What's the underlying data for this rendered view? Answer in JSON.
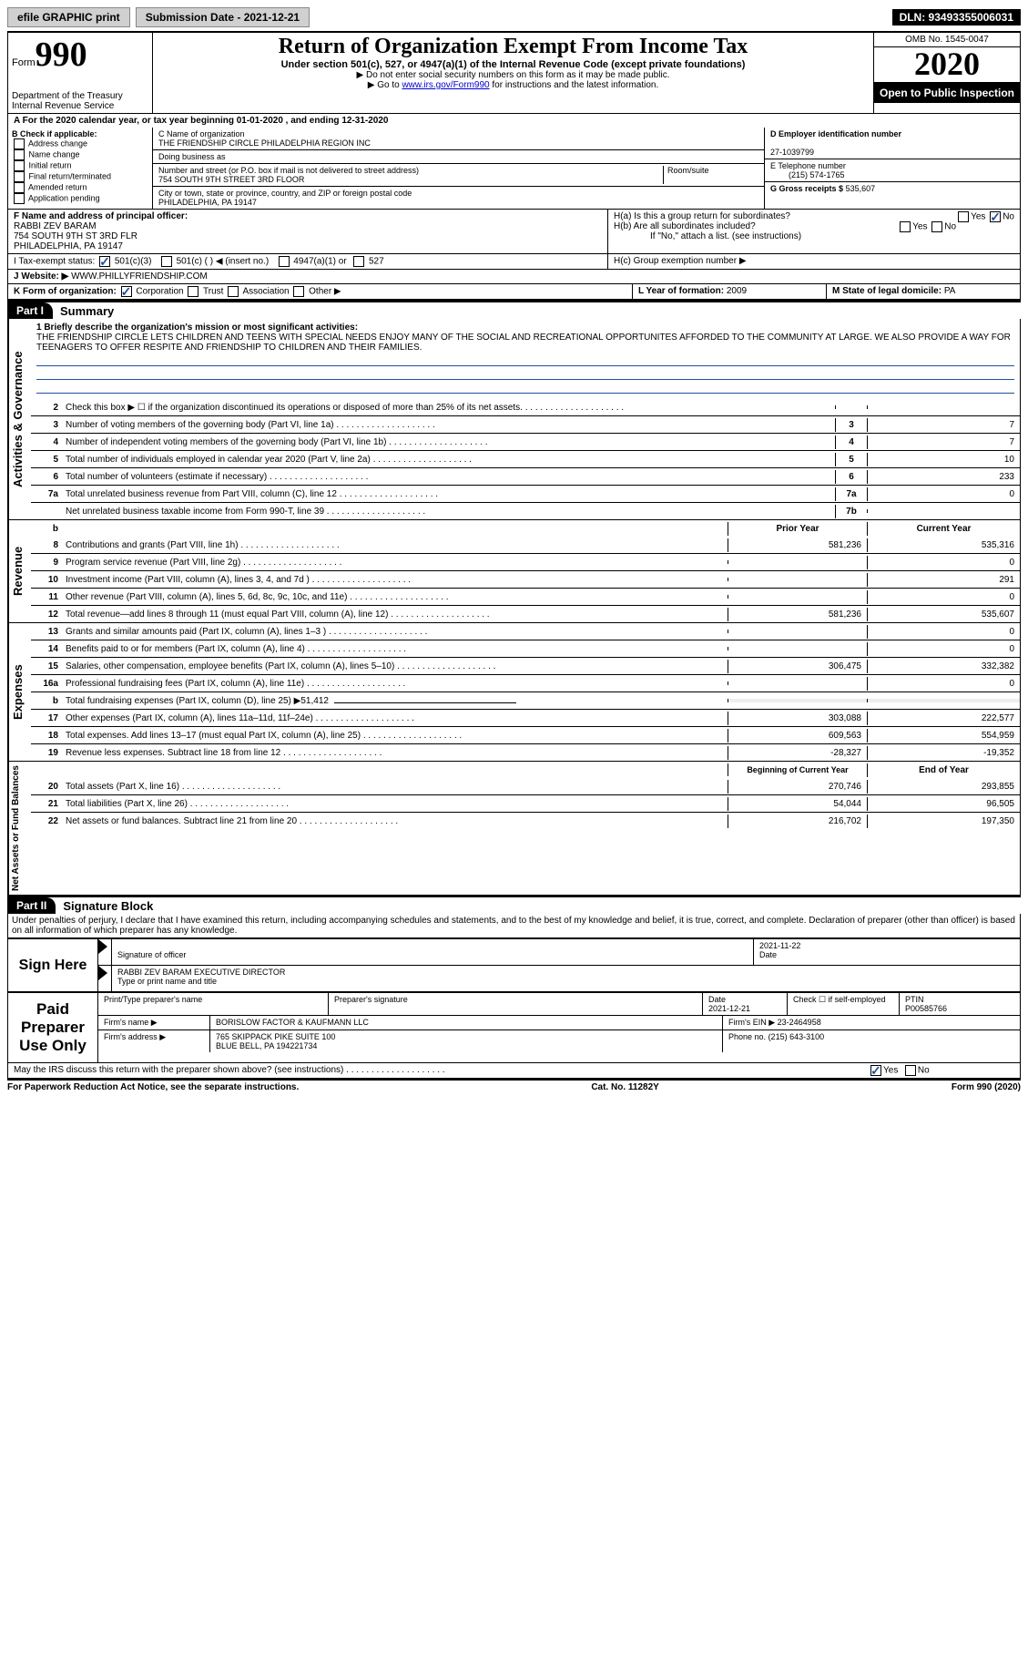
{
  "topbar": {
    "efile": "efile GRAPHIC print",
    "sub_label": "Submission Date - 2021-12-21",
    "dln": "DLN: 93493355006031"
  },
  "header": {
    "form_word": "Form",
    "form_num": "990",
    "dept": "Department of the Treasury",
    "irs": "Internal Revenue Service",
    "title": "Return of Organization Exempt From Income Tax",
    "sub": "Under section 501(c), 527, or 4947(a)(1) of the Internal Revenue Code (except private foundations)",
    "note1": "▶ Do not enter social security numbers on this form as it may be made public.",
    "note2_a": "▶ Go to ",
    "note2_link": "www.irs.gov/Form990",
    "note2_b": " for instructions and the latest information.",
    "omb": "OMB No. 1545-0047",
    "year": "2020",
    "open": "Open to Public Inspection"
  },
  "row_a": "A  For the 2020 calendar year, or tax year beginning 01-01-2020    , and ending 12-31-2020",
  "box_b": {
    "hdr": "B Check if applicable:",
    "items": [
      "Address change",
      "Name change",
      "Initial return",
      "Final return/terminated",
      "Amended return",
      "Application pending"
    ]
  },
  "box_c": {
    "label": "C Name of organization",
    "name": "THE FRIENDSHIP CIRCLE PHILADELPHIA REGION INC",
    "dba": "Doing business as",
    "addr_label": "Number and street (or P.O. box if mail is not delivered to street address)",
    "room": "Room/suite",
    "addr": "754 SOUTH 9TH STREET 3RD FLOOR",
    "city_label": "City or town, state or province, country, and ZIP or foreign postal code",
    "city": "PHILADELPHIA, PA  19147"
  },
  "box_d": {
    "label": "D Employer identification number",
    "val": "27-1039799"
  },
  "box_e": {
    "label": "E Telephone number",
    "val": "(215) 574-1765"
  },
  "box_g": {
    "label": "G Gross receipts $",
    "val": "535,607"
  },
  "box_f": {
    "label": "F  Name and address of principal officer:",
    "name": "RABBI ZEV BARAM",
    "addr1": "754 SOUTH 9TH ST 3RD FLR",
    "addr2": "PHILADELPHIA, PA  19147"
  },
  "box_h": {
    "a": "H(a)  Is this a group return for subordinates?",
    "b": "H(b)  Are all subordinates included?",
    "bnote": "If \"No,\" attach a list. (see instructions)",
    "c": "H(c)  Group exemption number ▶"
  },
  "row_i": {
    "label": "I   Tax-exempt status:",
    "o1": "501(c)(3)",
    "o2": "501(c) (  ) ◀ (insert no.)",
    "o3": "4947(a)(1) or",
    "o4": "527"
  },
  "row_j": {
    "label": "J  Website: ▶",
    "val": "WWW.PHILLYFRIENDSHIP.COM"
  },
  "row_k": {
    "label": "K Form of organization:",
    "opts": [
      "Corporation",
      "Trust",
      "Association",
      "Other ▶"
    ]
  },
  "row_l": {
    "label": "L Year of formation:",
    "val": "2009"
  },
  "row_m": {
    "label": "M State of legal domicile:",
    "val": "PA"
  },
  "part1": {
    "hdr": "Part I",
    "title": "Summary"
  },
  "mission": {
    "label": "1  Briefly describe the organization's mission or most significant activities:",
    "text": "THE FRIENDSHIP CIRCLE LETS CHILDREN AND TEENS WITH SPECIAL NEEDS ENJOY MANY OF THE SOCIAL AND RECREATIONAL OPPORTUNITES AFFORDED TO THE COMMUNITY AT LARGE. WE ALSO PROVIDE A WAY FOR TEENAGERS TO OFFER RESPITE AND FRIENDSHIP TO CHILDREN AND THEIR FAMILIES."
  },
  "gov_lines": [
    {
      "n": "2",
      "d": "Check this box ▶ ☐  if the organization discontinued its operations or disposed of more than 25% of its net assets.",
      "nc": "",
      "v": ""
    },
    {
      "n": "3",
      "d": "Number of voting members of the governing body (Part VI, line 1a)",
      "nc": "3",
      "v": "7"
    },
    {
      "n": "4",
      "d": "Number of independent voting members of the governing body (Part VI, line 1b)",
      "nc": "4",
      "v": "7"
    },
    {
      "n": "5",
      "d": "Total number of individuals employed in calendar year 2020 (Part V, line 2a)",
      "nc": "5",
      "v": "10"
    },
    {
      "n": "6",
      "d": "Total number of volunteers (estimate if necessary)",
      "nc": "6",
      "v": "233"
    },
    {
      "n": "7a",
      "d": "Total unrelated business revenue from Part VIII, column (C), line 12",
      "nc": "7a",
      "v": "0"
    },
    {
      "n": "",
      "d": "Net unrelated business taxable income from Form 990-T, line 39",
      "nc": "7b",
      "v": ""
    }
  ],
  "col_hdrs": {
    "b": "b",
    "py": "Prior Year",
    "cy": "Current Year"
  },
  "rev_lines": [
    {
      "n": "8",
      "d": "Contributions and grants (Part VIII, line 1h)",
      "py": "581,236",
      "cy": "535,316"
    },
    {
      "n": "9",
      "d": "Program service revenue (Part VIII, line 2g)",
      "py": "",
      "cy": "0"
    },
    {
      "n": "10",
      "d": "Investment income (Part VIII, column (A), lines 3, 4, and 7d )",
      "py": "",
      "cy": "291"
    },
    {
      "n": "11",
      "d": "Other revenue (Part VIII, column (A), lines 5, 6d, 8c, 9c, 10c, and 11e)",
      "py": "",
      "cy": "0"
    },
    {
      "n": "12",
      "d": "Total revenue—add lines 8 through 11 (must equal Part VIII, column (A), line 12)",
      "py": "581,236",
      "cy": "535,607"
    }
  ],
  "exp_lines": [
    {
      "n": "13",
      "d": "Grants and similar amounts paid (Part IX, column (A), lines 1–3 )",
      "py": "",
      "cy": "0"
    },
    {
      "n": "14",
      "d": "Benefits paid to or for members (Part IX, column (A), line 4)",
      "py": "",
      "cy": "0"
    },
    {
      "n": "15",
      "d": "Salaries, other compensation, employee benefits (Part IX, column (A), lines 5–10)",
      "py": "306,475",
      "cy": "332,382"
    },
    {
      "n": "16a",
      "d": "Professional fundraising fees (Part IX, column (A), line 11e)",
      "py": "",
      "cy": "0"
    },
    {
      "n": "b",
      "d": "Total fundraising expenses (Part IX, column (D), line 25) ▶51,412",
      "py": "—",
      "cy": "—"
    },
    {
      "n": "17",
      "d": "Other expenses (Part IX, column (A), lines 11a–11d, 11f–24e)",
      "py": "303,088",
      "cy": "222,577"
    },
    {
      "n": "18",
      "d": "Total expenses. Add lines 13–17 (must equal Part IX, column (A), line 25)",
      "py": "609,563",
      "cy": "554,959"
    },
    {
      "n": "19",
      "d": "Revenue less expenses. Subtract line 18 from line 12",
      "py": "-28,327",
      "cy": "-19,352"
    }
  ],
  "na_hdrs": {
    "b": "Beginning of Current Year",
    "e": "End of Year"
  },
  "na_lines": [
    {
      "n": "20",
      "d": "Total assets (Part X, line 16)",
      "py": "270,746",
      "cy": "293,855"
    },
    {
      "n": "21",
      "d": "Total liabilities (Part X, line 26)",
      "py": "54,044",
      "cy": "96,505"
    },
    {
      "n": "22",
      "d": "Net assets or fund balances. Subtract line 21 from line 20",
      "py": "216,702",
      "cy": "197,350"
    }
  ],
  "side_labels": {
    "gov": "Activities & Governance",
    "rev": "Revenue",
    "exp": "Expenses",
    "na": "Net Assets or Fund Balances"
  },
  "part2": {
    "hdr": "Part II",
    "title": "Signature Block"
  },
  "perjury": "Under penalties of perjury, I declare that I have examined this return, including accompanying schedules and statements, and to the best of my knowledge and belief, it is true, correct, and complete. Declaration of preparer (other than officer) is based on all information of which preparer has any knowledge.",
  "sign": {
    "here": "Sign Here",
    "sig_officer": "Signature of officer",
    "date": "Date",
    "sig_date": "2021-11-22",
    "name": "RABBI ZEV BARAM EXECUTIVE DIRECTOR",
    "name_lbl": "Type or print name and title"
  },
  "paid": {
    "label": "Paid Preparer Use Only",
    "c1": "Print/Type preparer's name",
    "c2": "Preparer's signature",
    "c3": "Date",
    "c3v": "2021-12-21",
    "c4": "Check ☐ if self-employed",
    "c5": "PTIN",
    "c5v": "P00585766",
    "firm_l": "Firm's name    ▶",
    "firm_v": "BORISLOW FACTOR & KAUFMANN LLC",
    "ein_l": "Firm's EIN ▶",
    "ein_v": "23-2464958",
    "addr_l": "Firm's address ▶",
    "addr_v1": "765 SKIPPACK PIKE SUITE 100",
    "addr_v2": "BLUE BELL, PA  194221734",
    "ph_l": "Phone no.",
    "ph_v": "(215) 643-3100"
  },
  "discuss": "May the IRS discuss this return with the preparer shown above? (see instructions)",
  "footer": {
    "l": "For Paperwork Reduction Act Notice, see the separate instructions.",
    "c": "Cat. No. 11282Y",
    "r": "Form 990 (2020)"
  },
  "yn": {
    "y": "Yes",
    "n": "No"
  }
}
